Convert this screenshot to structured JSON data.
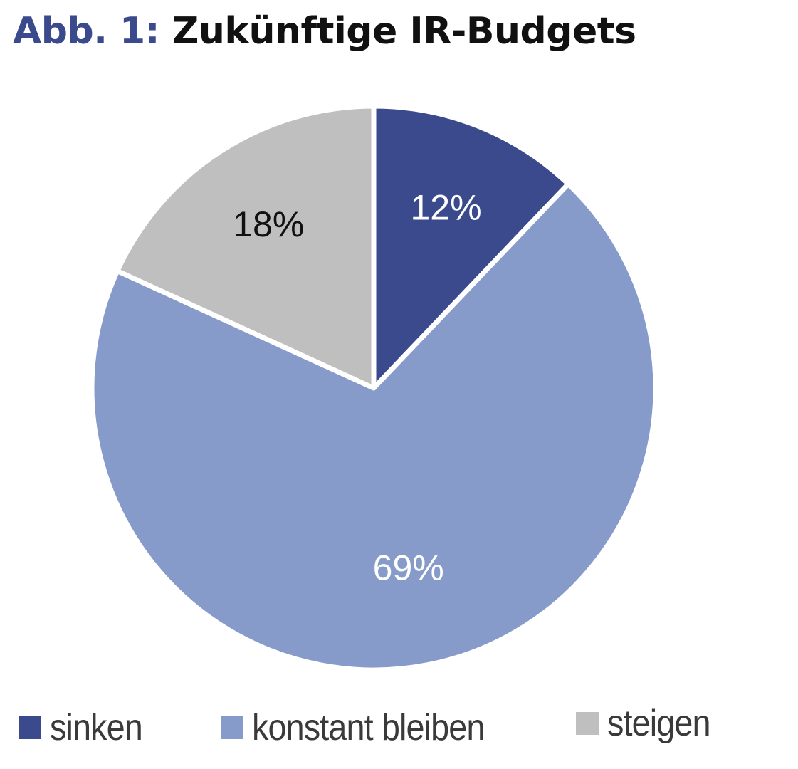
{
  "title": {
    "prefix": "Abb. 1:",
    "main": "Zukünftige IR-Budgets"
  },
  "chart_data": {
    "type": "pie",
    "title": "Abb. 1: Zukünftige IR-Budgets",
    "slices": [
      {
        "label": "sinken",
        "value": 12,
        "display": "12%",
        "color": "#3a4a8c",
        "label_color": "#ffffff"
      },
      {
        "label": "konstant bleiben",
        "value": 69,
        "display": "69%",
        "color": "#879bcb",
        "label_color": "#ffffff"
      },
      {
        "label": "steigen",
        "value": 18,
        "display": "18%",
        "color": "#bfbfbf",
        "label_color": "#111111"
      }
    ],
    "start_angle": "12 o'clock",
    "direction": "clockwise",
    "legend": "bottom"
  }
}
